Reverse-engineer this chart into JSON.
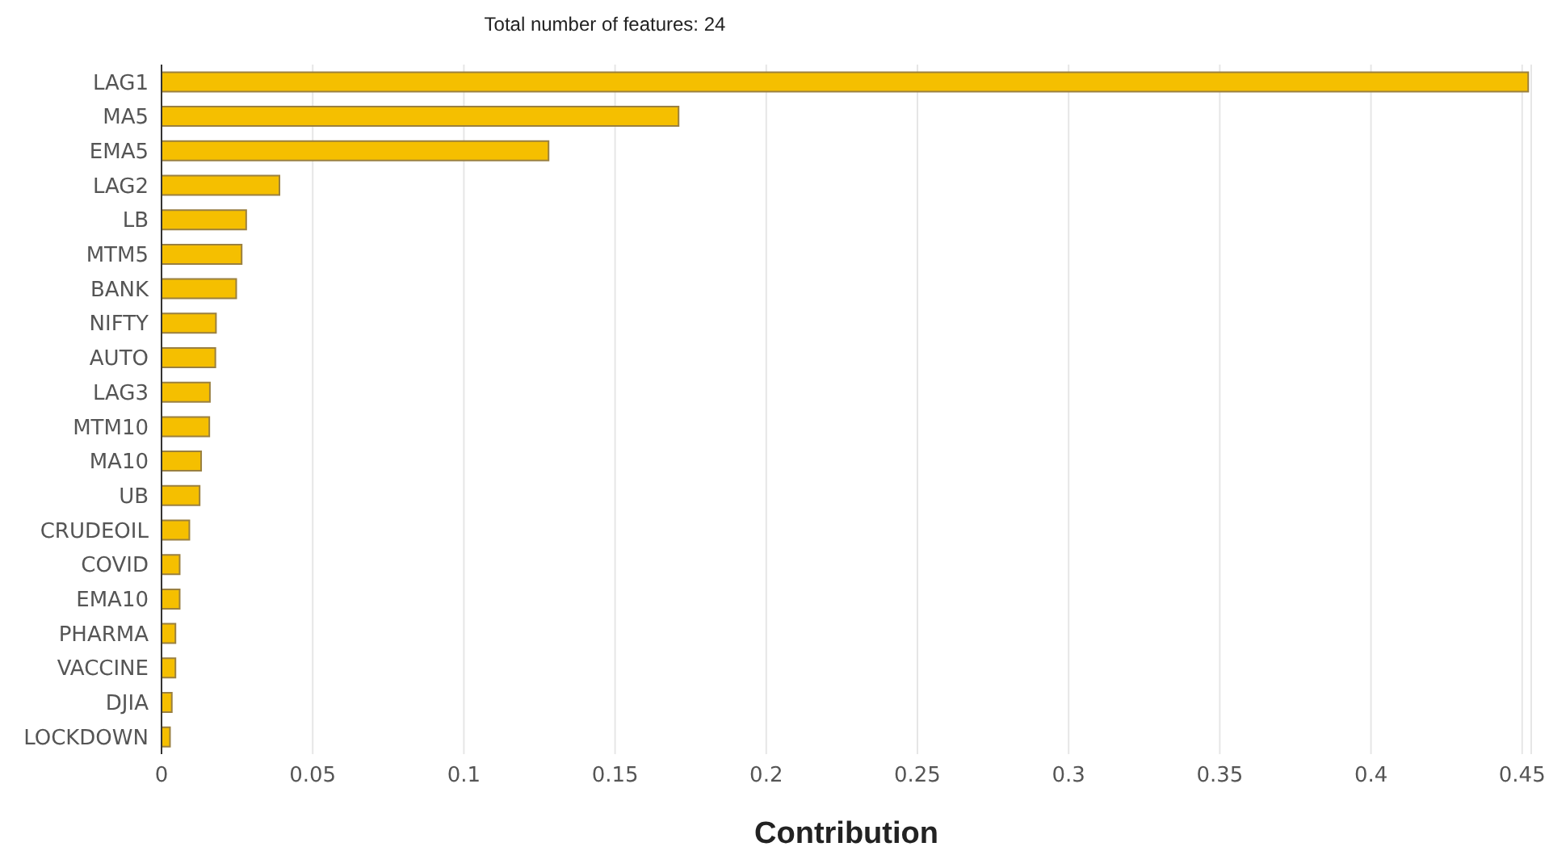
{
  "chart_data": {
    "type": "bar",
    "orientation": "horizontal",
    "title": "Total number of features: 24",
    "xlabel": "Contribution",
    "categories": [
      "LAG1",
      "MA5",
      "EMA5",
      "LAG2",
      "LB",
      "MTM5",
      "BANK",
      "NIFTY",
      "AUTO",
      "LAG3",
      "MTM10",
      "MA10",
      "UB",
      "CRUDEOIL",
      "COVID",
      "EMA10",
      "PHARMA",
      "VACCINE",
      "DJIA",
      "LOCKDOWN"
    ],
    "values": [
      0.452,
      0.171,
      0.128,
      0.039,
      0.028,
      0.0265,
      0.0247,
      0.018,
      0.0178,
      0.016,
      0.0158,
      0.0131,
      0.0126,
      0.0092,
      0.006,
      0.006,
      0.0046,
      0.0046,
      0.0034,
      0.0028
    ],
    "color": "#f5bf00",
    "xlim": [
      0,
      0.453
    ],
    "xticks": [
      0,
      0.05,
      0.1,
      0.15,
      0.2,
      0.25,
      0.3,
      0.35,
      0.4,
      0.45
    ],
    "grid": "x"
  }
}
